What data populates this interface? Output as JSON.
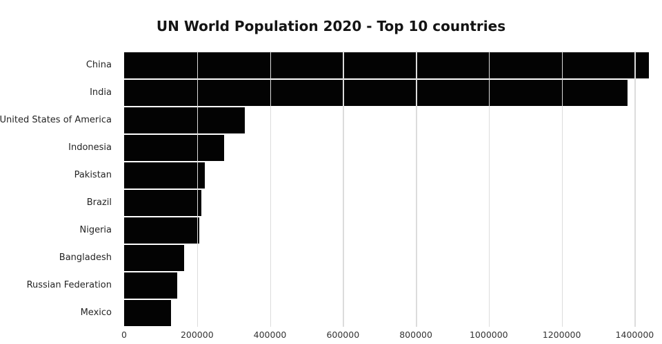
{
  "chart_data": {
    "type": "bar",
    "orientation": "horizontal",
    "title": "UN World Population 2020 - Top 10 countries",
    "categories": [
      "China",
      "India",
      "United States of America",
      "Indonesia",
      "Pakistan",
      "Brazil",
      "Nigeria",
      "Bangladesh",
      "Russian Federation",
      "Mexico"
    ],
    "values": [
      1439324,
      1380004,
      331003,
      273524,
      220892,
      212559,
      206140,
      164689,
      145934,
      128933
    ],
    "xlabel": "",
    "ylabel": "",
    "xlim": [
      0,
      1456000
    ],
    "xticks": [
      0,
      200000,
      400000,
      600000,
      800000,
      1000000,
      1200000,
      1400000
    ],
    "xtick_labels": [
      "0",
      "200000",
      "400000",
      "600000",
      "800000",
      "1000000",
      "1200000",
      "1400000"
    ],
    "grid": true,
    "legend": false,
    "bar_color": "#030303",
    "gridline_color": "#dcdcdc",
    "background_color": "#ffffff"
  }
}
